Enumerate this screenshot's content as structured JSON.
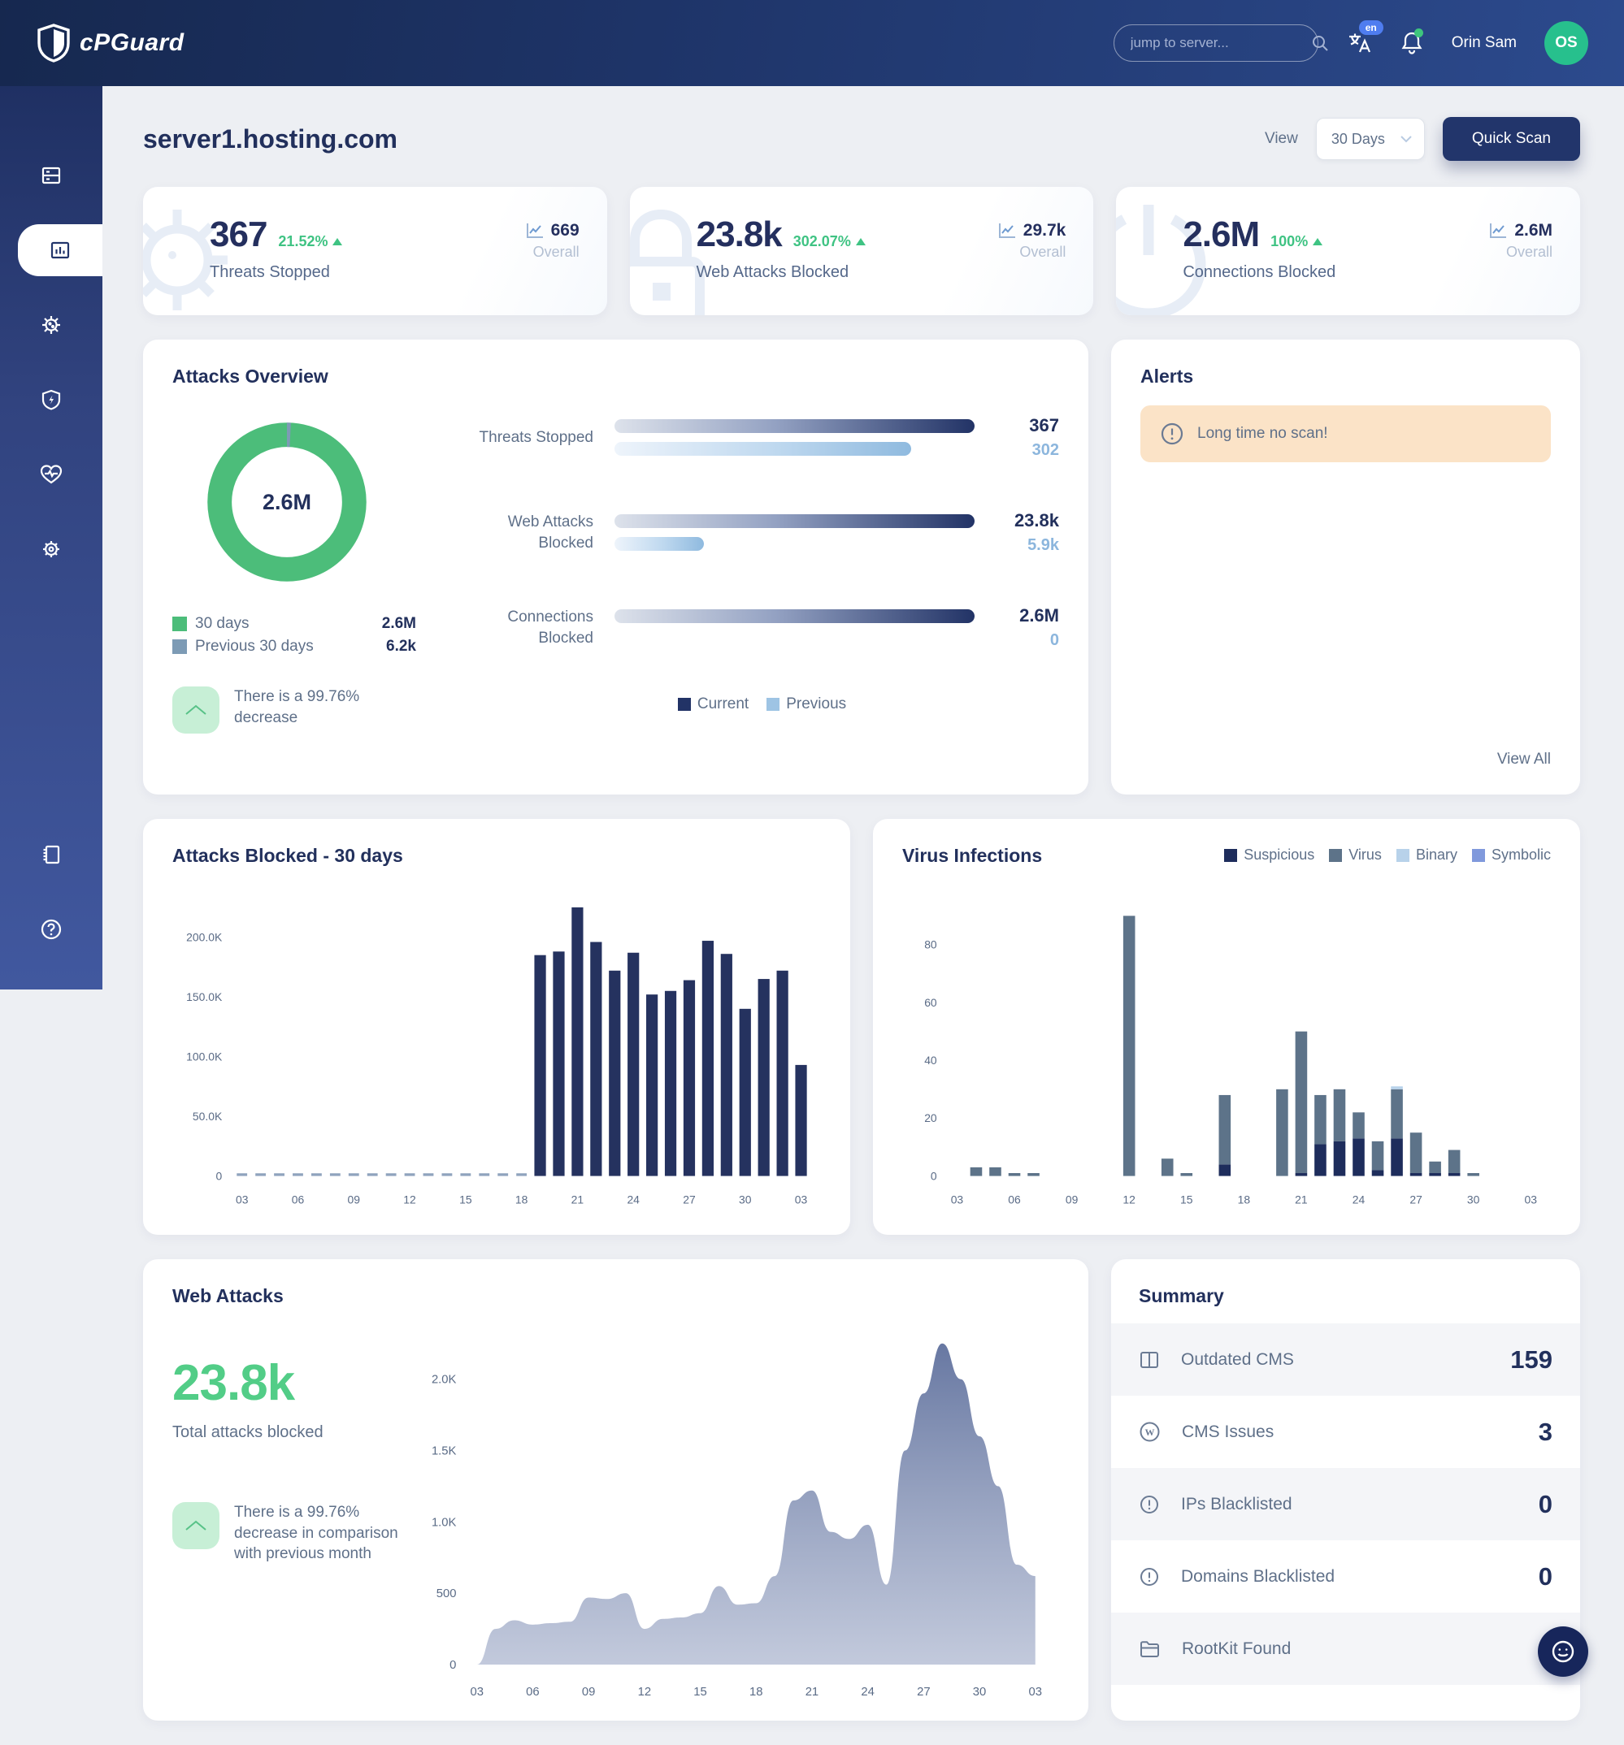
{
  "topbar": {
    "brand": "cPGuard",
    "search_placeholder": "jump to server...",
    "lang_badge": "en",
    "user_name": "Orin Sam",
    "user_initials": "OS"
  },
  "header": {
    "title": "server1.hosting.com",
    "view_label": "View",
    "view_value": "30 Days",
    "quick_scan_label": "Quick Scan"
  },
  "stat_cards": [
    {
      "value": "367",
      "delta": "21.52%",
      "label": "Threats Stopped",
      "overall_value": "669",
      "overall_label": "Overall",
      "icon": "virus-icon"
    },
    {
      "value": "23.8k",
      "delta": "302.07%",
      "label": "Web Attacks Blocked",
      "overall_value": "29.7k",
      "overall_label": "Overall",
      "icon": "lock-icon"
    },
    {
      "value": "2.6M",
      "delta": "100%",
      "label": "Connections Blocked",
      "overall_value": "2.6M",
      "overall_label": "Overall",
      "icon": "power-icon"
    }
  ],
  "attacks_overview": {
    "title": "Attacks Overview",
    "donut_center": "2.6M",
    "legend": [
      {
        "label": "30 days",
        "value": "2.6M",
        "color": "#4cbd7a"
      },
      {
        "label": "Previous 30 days",
        "value": "6.2k",
        "color": "#7d9bb5"
      }
    ],
    "note": "There is a 99.76% decrease",
    "bars": [
      {
        "label": "Threats Stopped",
        "current": 367,
        "previous": 302,
        "current_text": "367",
        "previous_text": "302"
      },
      {
        "label": "Web Attacks Blocked",
        "current": 23800,
        "previous": 5900,
        "current_text": "23.8k",
        "previous_text": "5.9k"
      },
      {
        "label": "Connections Blocked",
        "current": 2600000,
        "previous": 0,
        "current_text": "2.6M",
        "previous_text": "0"
      }
    ],
    "bar_legend": {
      "current": "Current",
      "previous": "Previous"
    }
  },
  "alerts": {
    "title": "Alerts",
    "items": [
      {
        "text": "Long time no scan!"
      }
    ],
    "view_all": "View All"
  },
  "panels": {
    "attacks_blocked_title": "Attacks Blocked - 30 days",
    "virus_infections_title": "Virus Infections",
    "web_attacks_title": "Web Attacks",
    "summary_title": "Summary"
  },
  "web_attacks_panel": {
    "total": "23.8k",
    "total_label": "Total attacks blocked",
    "note": "There is a 99.76% decrease in comparison with previous month"
  },
  "summary": {
    "rows": [
      {
        "label": "Outdated CMS",
        "value": "159",
        "icon": "columns-icon"
      },
      {
        "label": "CMS Issues",
        "value": "3",
        "icon": "wordpress-icon"
      },
      {
        "label": "IPs Blacklisted",
        "value": "0",
        "icon": "alert-circle-icon"
      },
      {
        "label": "Domains Blacklisted",
        "value": "0",
        "icon": "alert-circle-icon"
      },
      {
        "label": "RootKit Found",
        "value": "0",
        "icon": "folder-icon"
      }
    ]
  },
  "colors": {
    "navy": "#22305c",
    "bar": "#25325f",
    "green": "#4cbd7a",
    "accent_green": "#3fc383",
    "suspicious": "#1e2d5c",
    "virus": "#5d7389",
    "binary": "#b8d2ea",
    "symbolic": "#8099dc",
    "alert_bg": "#fbe3c7",
    "prev_blue": "#7d9bb5"
  },
  "chart_data": [
    {
      "id": "attacks_blocked",
      "type": "bar",
      "title": "Attacks Blocked - 30 days",
      "ylim": [
        0,
        230000
      ],
      "ymax": 230000,
      "y_ticks": [
        0,
        50000,
        100000,
        150000,
        200000
      ],
      "y_tick_labels": [
        "0",
        "50.0K",
        "100.0K",
        "150.0K",
        "200.0K"
      ],
      "x_tick_labels": [
        "03",
        "06",
        "09",
        "12",
        "15",
        "18",
        "21",
        "24",
        "27",
        "30",
        "03"
      ],
      "tick_every": 3,
      "n_slots": 31,
      "dash_threshold": 2000,
      "values": [
        600,
        600,
        600,
        600,
        600,
        600,
        600,
        600,
        600,
        600,
        600,
        600,
        600,
        600,
        600,
        600,
        185000,
        188000,
        225000,
        196000,
        172000,
        187000,
        152000,
        155000,
        164000,
        197000,
        186000,
        140000,
        165000,
        172000,
        93000
      ]
    },
    {
      "id": "virus_infections",
      "type": "bar",
      "stacked": true,
      "title": "Virus Infections",
      "ylim": [
        0,
        95
      ],
      "ymax": 95,
      "y_ticks": [
        0,
        20,
        40,
        60,
        80
      ],
      "y_tick_labels": [
        "0",
        "20",
        "40",
        "60",
        "80"
      ],
      "x_tick_labels": [
        "03",
        "06",
        "09",
        "12",
        "15",
        "18",
        "21",
        "24",
        "27",
        "30",
        "03"
      ],
      "tick_every": 3,
      "n_slots": 31,
      "legend_position": "top-right",
      "series": [
        {
          "name": "Suspicious",
          "color": "#1e2d5c",
          "values": [
            0,
            0,
            0,
            0,
            0,
            0,
            0,
            0,
            0,
            0,
            0,
            0,
            0,
            0,
            4,
            0,
            0,
            0,
            1,
            11,
            12,
            13,
            2,
            13,
            1,
            1,
            1,
            0,
            0,
            0,
            0
          ]
        },
        {
          "name": "Virus",
          "color": "#5d7389",
          "values": [
            0,
            3,
            3,
            1,
            1,
            0,
            0,
            0,
            0,
            90,
            0,
            6,
            1,
            0,
            24,
            0,
            0,
            30,
            49,
            17,
            18,
            9,
            10,
            17,
            14,
            4,
            8,
            1,
            0,
            0,
            0
          ]
        },
        {
          "name": "Binary",
          "color": "#b8d2ea",
          "values": [
            0,
            0,
            0,
            0,
            0,
            0,
            0,
            0,
            0,
            0,
            0,
            0,
            0,
            0,
            0,
            0,
            0,
            0,
            0,
            0,
            0,
            0,
            0,
            1,
            0,
            0,
            0,
            0,
            0,
            0,
            0
          ]
        },
        {
          "name": "Symbolic",
          "color": "#8099dc",
          "values": [
            0,
            0,
            0,
            0,
            0,
            0,
            0,
            0,
            0,
            0,
            0,
            0,
            0,
            0,
            0,
            0,
            0,
            0,
            0,
            0,
            0,
            0,
            0,
            0,
            0,
            0,
            0,
            0,
            0,
            0,
            0
          ]
        }
      ]
    },
    {
      "id": "web_attacks",
      "type": "area",
      "title": "Web Attacks",
      "ylim": [
        0,
        2300
      ],
      "ymax": 2300,
      "y_ticks": [
        0,
        500,
        1000,
        1500,
        2000
      ],
      "y_tick_labels": [
        "0",
        "500",
        "1.0K",
        "1.5K",
        "2.0K"
      ],
      "x_tick_labels": [
        "03",
        "06",
        "09",
        "12",
        "15",
        "18",
        "21",
        "24",
        "27",
        "30",
        "03"
      ],
      "tick_every": 3,
      "n_slots": 31,
      "values": [
        0,
        250,
        310,
        280,
        290,
        300,
        470,
        460,
        500,
        250,
        320,
        330,
        360,
        550,
        420,
        430,
        620,
        1150,
        1220,
        930,
        880,
        980,
        560,
        1500,
        1900,
        2250,
        2000,
        1600,
        1250,
        700,
        620
      ]
    },
    {
      "id": "overview_donut",
      "type": "pie",
      "center_label": "2.6M",
      "segments": [
        {
          "label": "30 days",
          "value": 2600000,
          "color": "#4cbd7a"
        },
        {
          "label": "Previous 30 days",
          "value": 6200,
          "color": "#7d9bb5"
        }
      ]
    },
    {
      "id": "overview_bars",
      "type": "bar",
      "orientation": "horizontal",
      "groups": [
        {
          "label": "Threats Stopped",
          "current": 367,
          "previous": 302
        },
        {
          "label": "Web Attacks Blocked",
          "current": 23800,
          "previous": 5900
        },
        {
          "label": "Connections Blocked",
          "current": 2600000,
          "previous": 0
        }
      ],
      "legend": [
        "Current",
        "Previous"
      ]
    }
  ]
}
